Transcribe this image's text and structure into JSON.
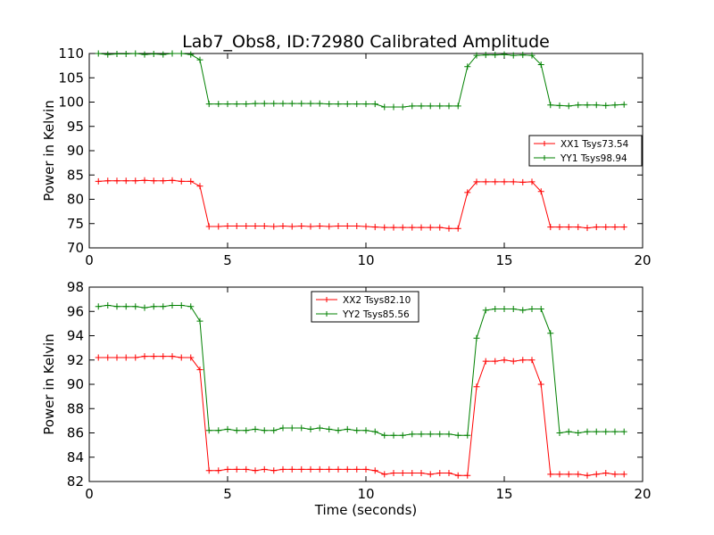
{
  "figure": {
    "title": "Lab7_Obs8, ID:72980 Calibrated Amplitude"
  },
  "chart_data": [
    {
      "type": "line",
      "title": "",
      "xlabel": "",
      "ylabel": "Power in Kelvin",
      "xlim": [
        0,
        20
      ],
      "ylim": [
        70,
        110
      ],
      "xticks": [
        "0",
        "5",
        "10",
        "15",
        "20"
      ],
      "yticks": [
        "70",
        "75",
        "80",
        "85",
        "90",
        "95",
        "100",
        "105",
        "110"
      ],
      "grid": false,
      "legend_position": "center-right",
      "x": [
        0.33,
        0.67,
        1.0,
        1.33,
        1.67,
        2.0,
        2.33,
        2.67,
        3.0,
        3.33,
        3.67,
        4.0,
        4.33,
        4.67,
        5.0,
        5.33,
        5.67,
        6.0,
        6.33,
        6.67,
        7.0,
        7.33,
        7.67,
        8.0,
        8.33,
        8.67,
        9.0,
        9.33,
        9.67,
        10.0,
        10.33,
        10.67,
        11.0,
        11.33,
        11.67,
        12.0,
        12.33,
        12.67,
        13.0,
        13.33,
        13.67,
        14.0,
        14.33,
        14.67,
        15.0,
        15.33,
        15.67,
        16.0,
        16.33,
        16.67,
        17.0,
        17.33,
        17.67,
        18.0,
        18.33,
        18.67,
        19.0,
        19.33
      ],
      "series": [
        {
          "name": "XX1 Tsys73.54",
          "color": "#ff0000",
          "values": [
            83.7,
            83.8,
            83.8,
            83.8,
            83.8,
            83.9,
            83.8,
            83.8,
            83.9,
            83.7,
            83.7,
            82.7,
            74.4,
            74.4,
            74.5,
            74.5,
            74.5,
            74.5,
            74.5,
            74.4,
            74.5,
            74.4,
            74.5,
            74.4,
            74.5,
            74.4,
            74.5,
            74.5,
            74.5,
            74.4,
            74.3,
            74.2,
            74.2,
            74.2,
            74.2,
            74.2,
            74.2,
            74.2,
            74.0,
            74.0,
            81.4,
            83.6,
            83.6,
            83.6,
            83.6,
            83.6,
            83.5,
            83.6,
            81.6,
            74.3,
            74.3,
            74.3,
            74.3,
            74.1,
            74.3,
            74.3,
            74.3,
            74.3
          ]
        },
        {
          "name": "YY1 Tsys98.94",
          "color": "#008000",
          "values": [
            110.0,
            109.8,
            109.9,
            109.9,
            110.0,
            109.8,
            109.9,
            109.8,
            110.0,
            110.0,
            109.8,
            108.7,
            99.6,
            99.6,
            99.6,
            99.6,
            99.6,
            99.7,
            99.7,
            99.7,
            99.7,
            99.7,
            99.7,
            99.7,
            99.7,
            99.6,
            99.6,
            99.6,
            99.6,
            99.6,
            99.6,
            99.0,
            99.0,
            99.0,
            99.2,
            99.2,
            99.2,
            99.2,
            99.2,
            99.2,
            107.3,
            109.6,
            109.7,
            109.7,
            109.8,
            109.6,
            109.7,
            109.6,
            107.7,
            99.4,
            99.3,
            99.2,
            99.4,
            99.4,
            99.4,
            99.3,
            99.4,
            99.5
          ]
        }
      ]
    },
    {
      "type": "line",
      "title": "",
      "xlabel": "Time (seconds)",
      "ylabel": "Power in Kelvin",
      "xlim": [
        0,
        20
      ],
      "ylim": [
        82,
        98
      ],
      "xticks": [
        "0",
        "5",
        "10",
        "15",
        "20"
      ],
      "yticks": [
        "82",
        "84",
        "86",
        "88",
        "90",
        "92",
        "94",
        "96",
        "98"
      ],
      "grid": false,
      "legend_position": "upper-center",
      "x": [
        0.33,
        0.67,
        1.0,
        1.33,
        1.67,
        2.0,
        2.33,
        2.67,
        3.0,
        3.33,
        3.67,
        4.0,
        4.33,
        4.67,
        5.0,
        5.33,
        5.67,
        6.0,
        6.33,
        6.67,
        7.0,
        7.33,
        7.67,
        8.0,
        8.33,
        8.67,
        9.0,
        9.33,
        9.67,
        10.0,
        10.33,
        10.67,
        11.0,
        11.33,
        11.67,
        12.0,
        12.33,
        12.67,
        13.0,
        13.33,
        13.67,
        14.0,
        14.33,
        14.67,
        15.0,
        15.33,
        15.67,
        16.0,
        16.33,
        16.67,
        17.0,
        17.33,
        17.67,
        18.0,
        18.33,
        18.67,
        19.0,
        19.33
      ],
      "series": [
        {
          "name": "XX2 Tsys82.10",
          "color": "#ff0000",
          "values": [
            92.2,
            92.2,
            92.2,
            92.2,
            92.2,
            92.3,
            92.3,
            92.3,
            92.3,
            92.2,
            92.2,
            91.2,
            82.9,
            82.9,
            83.0,
            83.0,
            83.0,
            82.9,
            83.0,
            82.9,
            83.0,
            83.0,
            83.0,
            83.0,
            83.0,
            83.0,
            83.0,
            83.0,
            83.0,
            83.0,
            82.9,
            82.6,
            82.7,
            82.7,
            82.7,
            82.7,
            82.6,
            82.7,
            82.7,
            82.5,
            82.5,
            89.8,
            91.9,
            91.9,
            92.0,
            91.9,
            92.0,
            92.0,
            90.0,
            82.6,
            82.6,
            82.6,
            82.6,
            82.5,
            82.6,
            82.7,
            82.6,
            82.6
          ]
        },
        {
          "name": "YY2 Tsys85.56",
          "color": "#008000",
          "values": [
            96.4,
            96.5,
            96.4,
            96.4,
            96.4,
            96.3,
            96.4,
            96.4,
            96.5,
            96.5,
            96.4,
            95.2,
            86.2,
            86.2,
            86.3,
            86.2,
            86.2,
            86.3,
            86.2,
            86.2,
            86.4,
            86.4,
            86.4,
            86.3,
            86.4,
            86.3,
            86.2,
            86.3,
            86.2,
            86.2,
            86.1,
            85.8,
            85.8,
            85.8,
            85.9,
            85.9,
            85.9,
            85.9,
            85.9,
            85.8,
            85.8,
            93.8,
            96.1,
            96.2,
            96.2,
            96.2,
            96.1,
            96.2,
            96.2,
            94.2,
            86.0,
            86.1,
            86.0,
            86.1,
            86.1,
            86.1,
            86.1,
            86.1
          ]
        }
      ]
    }
  ]
}
